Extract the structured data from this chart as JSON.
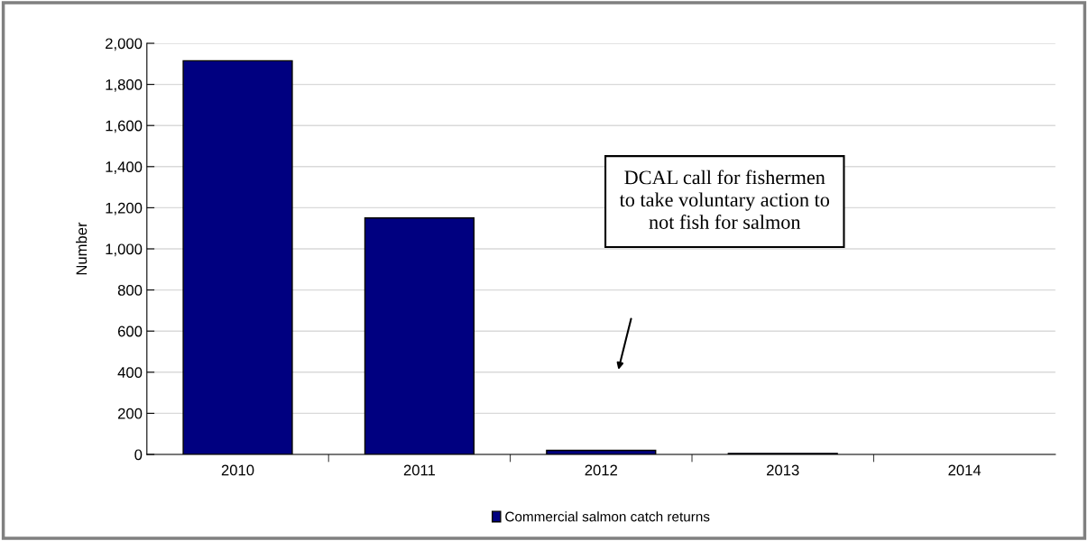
{
  "chart_data": {
    "type": "bar",
    "ylabel": "Number",
    "categories": [
      "2010",
      "2011",
      "2012",
      "2013",
      "2014"
    ],
    "series": [
      {
        "name": "Commercial salmon catch returns",
        "color": "#000080",
        "values": [
          1915,
          1150,
          20,
          5,
          null
        ]
      }
    ],
    "ylim": [
      0,
      2000
    ],
    "yticks": [
      {
        "value": 0,
        "label": "0"
      },
      {
        "value": 200,
        "label": "200"
      },
      {
        "value": 400,
        "label": "400"
      },
      {
        "value": 600,
        "label": "600"
      },
      {
        "value": 800,
        "label": "800"
      },
      {
        "value": 1000,
        "label": "1,000"
      },
      {
        "value": 1200,
        "label": "1,200"
      },
      {
        "value": 1400,
        "label": "1,400"
      },
      {
        "value": 1600,
        "label": "1,600"
      },
      {
        "value": 1800,
        "label": "1,800"
      },
      {
        "value": 2000,
        "label": "2,000"
      }
    ],
    "grid": "y",
    "legend": "bottom",
    "annotations": [
      "DCAL call for fishermen\nto take voluntary action to\nnot fish for salmon"
    ]
  }
}
